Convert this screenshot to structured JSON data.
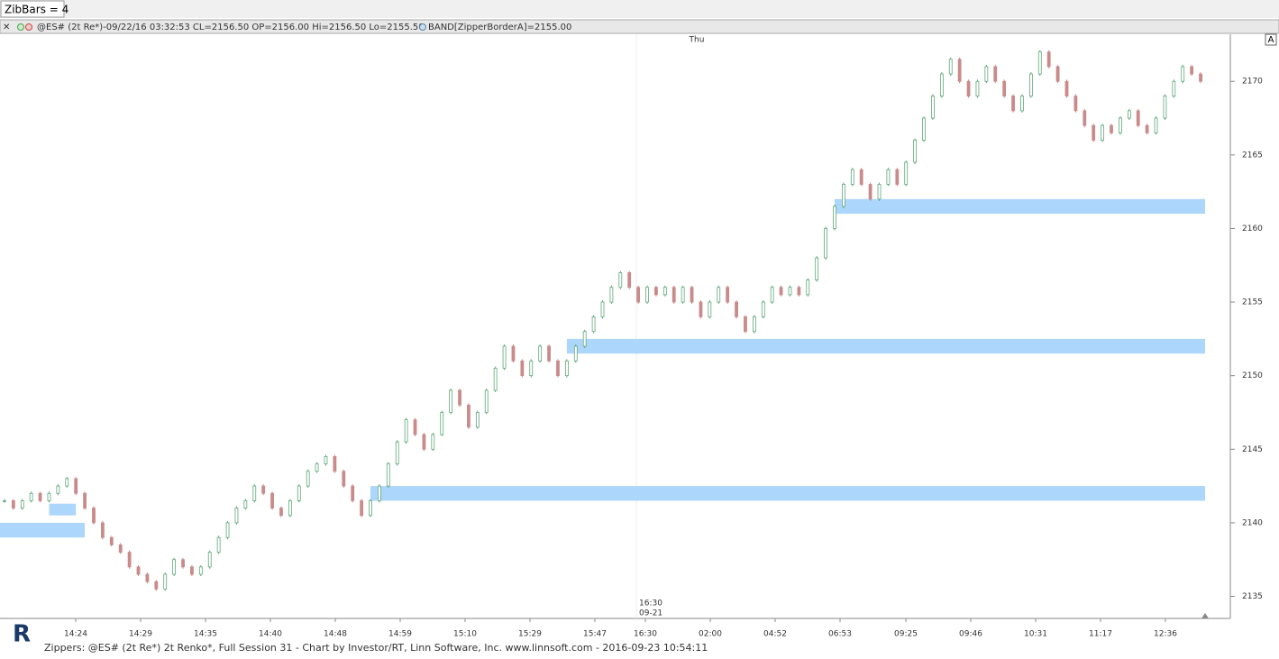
{
  "toolbar": {
    "zibbars": "ZibBars = 4"
  },
  "header": {
    "quote": "@ES# (2t Re*)-09/22/16 03:32:53 CL=2156.50 OP=2156.00 Hi=2156.50 Lo=2155.50",
    "band": "BAND[ZipperBorderA]=2155.00",
    "corner": "A"
  },
  "chart_data": {
    "type": "renko",
    "day_label": "Thu",
    "session_time": "16:30",
    "session_date": "09-21",
    "values": [
      2141.5,
      2141,
      2141.5,
      2142,
      2141.5,
      2142,
      2142.5,
      2143,
      2142,
      2141,
      2140,
      2139,
      2138.5,
      2138,
      2137,
      2136.5,
      2136,
      2135.5,
      2136.5,
      2137.5,
      2137,
      2136.5,
      2137,
      2138,
      2139,
      2140,
      2141,
      2141.5,
      2142.5,
      2142,
      2141,
      2140.5,
      2141.5,
      2142.5,
      2143.5,
      2144,
      2144.5,
      2143.5,
      2142.5,
      2141.5,
      2140.5,
      2141.5,
      2142.5,
      2144,
      2145.5,
      2147,
      2146,
      2145,
      2146,
      2147.5,
      2149,
      2148,
      2146.5,
      2147.5,
      2149,
      2150.5,
      2152,
      2151,
      2150,
      2151,
      2152,
      2151,
      2150,
      2151,
      2152,
      2153,
      2154,
      2155,
      2156,
      2157,
      2156,
      2155,
      2156,
      2155.5,
      2156,
      2155,
      2156,
      2155,
      2154,
      2155,
      2156,
      2155,
      2154,
      2153,
      2154,
      2155,
      2156,
      2155.5,
      2156,
      2155.5,
      2156.5,
      2158,
      2160,
      2161.5,
      2163,
      2164,
      2163,
      2162,
      2163,
      2164,
      2163,
      2164.5,
      2166,
      2167.5,
      2169,
      2170.5,
      2171.5,
      2170,
      2169,
      2170,
      2171,
      2170,
      2169,
      2168,
      2169,
      2170.5,
      2172,
      2171,
      2170,
      2169,
      2168,
      2167,
      2166,
      2167,
      2166.5,
      2167.5,
      2168,
      2167,
      2166.5,
      2167.5,
      2169,
      2170,
      2171,
      2170.5,
      2170
    ],
    "up_color": "#5fa87a",
    "down_color": "#c98a8a",
    "band_color": "#acd6fb",
    "bands": [
      {
        "low": 2139,
        "high": 2140,
        "start": 0,
        "end": 9
      },
      {
        "low": 2140.5,
        "high": 2141.3,
        "start": 5,
        "end": 8
      },
      {
        "low": 2141.5,
        "high": 2142.5,
        "start": 41,
        "end": 140
      },
      {
        "low": 2151.5,
        "high": 2152.5,
        "start": 63,
        "end": 140
      },
      {
        "low": 2161,
        "high": 2162,
        "start": 93,
        "end": 140
      }
    ],
    "xticks": [
      "14:24",
      "14:29",
      "14:35",
      "14:40",
      "14:48",
      "14:59",
      "15:10",
      "15:29",
      "15:47",
      "16:30",
      "02:00",
      "04:52",
      "06:53",
      "09:25",
      "09:46",
      "10:31",
      "11:17",
      "12:36"
    ],
    "ylim": [
      2133.5,
      2173.2
    ],
    "yticks": [
      2135,
      2140,
      2145,
      2150,
      2155,
      2160,
      2165,
      2170
    ]
  },
  "footer": {
    "text": "Zippers: @ES# (2t Re*) 2t Renko*, Full Session 31 - Chart by Investor/RT, Linn Software, Inc. www.linnsoft.com - 2016-09-23 10:54:11"
  }
}
